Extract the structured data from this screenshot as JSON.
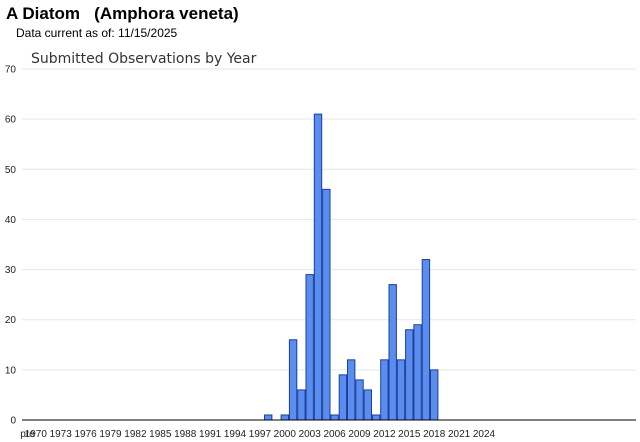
{
  "header": {
    "title": "A Diatom   (Amphora veneta)",
    "subtitle": "Data current as of: 11/15/2025"
  },
  "chart_data": {
    "type": "bar",
    "title": "Submitted Observations by Year",
    "xlabel": "",
    "ylabel": "",
    "ylim": [
      0,
      70
    ],
    "y_ticks": [
      0,
      10,
      20,
      30,
      40,
      50,
      60,
      70
    ],
    "grid": true,
    "legend": "none",
    "categories": [
      "pre",
      "1970",
      "1971",
      "1972",
      "1973",
      "1974",
      "1975",
      "1976",
      "1977",
      "1978",
      "1979",
      "1980",
      "1981",
      "1982",
      "1983",
      "1984",
      "1985",
      "1986",
      "1987",
      "1988",
      "1989",
      "1990",
      "1991",
      "1992",
      "1993",
      "1994",
      "1995",
      "1996",
      "1997",
      "1998",
      "1999",
      "2000",
      "2001",
      "2002",
      "2003",
      "2004",
      "2005",
      "2006",
      "2007",
      "2008",
      "2009",
      "2010",
      "2011",
      "2012",
      "2013",
      "2014",
      "2015",
      "2016",
      "2017",
      "2018",
      "2019",
      "2020",
      "2021",
      "2022",
      "2023",
      "2024",
      "2025"
    ],
    "x_tick_labels": [
      "pre",
      "1970",
      "1973",
      "1976",
      "1979",
      "1982",
      "1985",
      "1988",
      "1991",
      "1994",
      "1997",
      "2000",
      "2003",
      "2006",
      "2009",
      "2012",
      "2015",
      "2018",
      "2021",
      "2024"
    ],
    "values": [
      0,
      0,
      0,
      0,
      0,
      0,
      0,
      0,
      0,
      0,
      0,
      0,
      0,
      0,
      0,
      0,
      0,
      0,
      0,
      0,
      0,
      0,
      0,
      0,
      0,
      0,
      0,
      0,
      0,
      1,
      0,
      1,
      16,
      6,
      29,
      61,
      46,
      1,
      9,
      12,
      8,
      6,
      1,
      12,
      27,
      12,
      18,
      19,
      32,
      10,
      0,
      0,
      0,
      0,
      0,
      0,
      0
    ],
    "colors": {
      "bar_fill": "#5b8def",
      "bar_stroke": "#1a3f9c",
      "grid": "#e6e6e6",
      "axis": "#000000"
    }
  }
}
